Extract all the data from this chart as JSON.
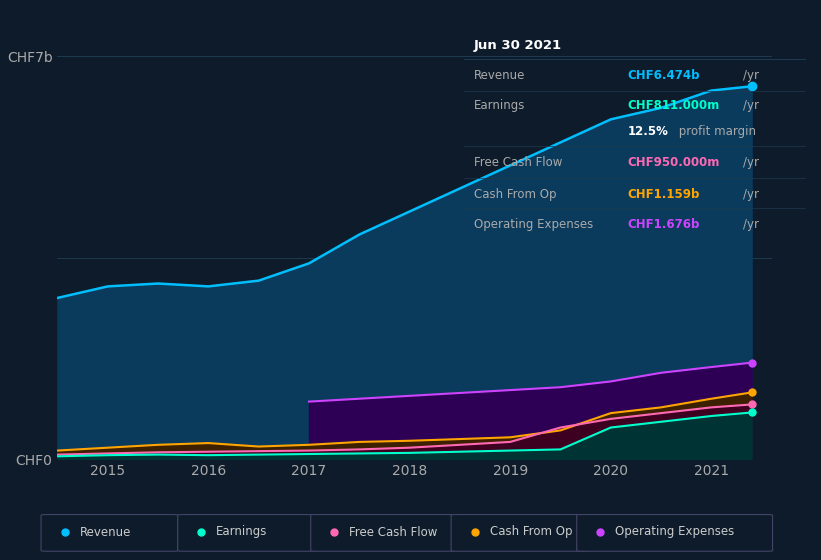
{
  "background_color": "#0d1b2a",
  "plot_bg_color": "#0d1b2a",
  "grid_color": "#1e3a50",
  "years": [
    2014.5,
    2015.0,
    2015.5,
    2016.0,
    2016.5,
    2017.0,
    2017.5,
    2018.0,
    2018.5,
    2019.0,
    2019.5,
    2020.0,
    2020.5,
    2021.0,
    2021.4
  ],
  "revenue": [
    2.8,
    3.0,
    3.05,
    3.0,
    3.1,
    3.4,
    3.9,
    4.3,
    4.7,
    5.1,
    5.5,
    5.9,
    6.1,
    6.4,
    6.474
  ],
  "earnings": [
    0.05,
    0.07,
    0.08,
    0.07,
    0.08,
    0.09,
    0.1,
    0.11,
    0.13,
    0.15,
    0.17,
    0.55,
    0.65,
    0.75,
    0.811
  ],
  "free_cash_flow": [
    0.08,
    0.1,
    0.12,
    0.13,
    0.14,
    0.15,
    0.17,
    0.2,
    0.25,
    0.3,
    0.55,
    0.7,
    0.8,
    0.9,
    0.95
  ],
  "cash_from_op": [
    0.15,
    0.2,
    0.25,
    0.28,
    0.22,
    0.25,
    0.3,
    0.32,
    0.35,
    0.38,
    0.5,
    0.8,
    0.9,
    1.05,
    1.159
  ],
  "op_expenses": [
    0.0,
    0.0,
    0.0,
    0.0,
    0.0,
    1.0,
    1.05,
    1.1,
    1.15,
    1.2,
    1.25,
    1.35,
    1.5,
    1.6,
    1.676
  ],
  "revenue_color": "#00bfff",
  "revenue_fill": "#0a3a5c",
  "earnings_color": "#00ffcc",
  "earnings_fill": "#003333",
  "free_cash_flow_color": "#ff69b4",
  "free_cash_flow_fill": "#3d0020",
  "cash_from_op_color": "#ffa500",
  "cash_from_op_fill": "#3d2000",
  "op_expenses_color": "#cc44ff",
  "op_expenses_fill": "#2d0055",
  "ylim": [
    0,
    7.0
  ],
  "xlim": [
    2014.5,
    2021.6
  ],
  "yticks": [
    0,
    3.5,
    7.0
  ],
  "ytick_labels": [
    "CHF0",
    "",
    "CHF7b"
  ],
  "xticks": [
    2015,
    2016,
    2017,
    2018,
    2019,
    2020,
    2021
  ],
  "info_box": {
    "date": "Jun 30 2021",
    "revenue_label": "Revenue",
    "revenue_value": "CHF6.474b",
    "revenue_value_color": "#00bfff",
    "earnings_label": "Earnings",
    "earnings_value": "CHF811.000m",
    "earnings_value_color": "#00ffcc",
    "profit_margin_bold": "12.5%",
    "profit_margin_rest": " profit margin",
    "fcf_label": "Free Cash Flow",
    "fcf_value": "CHF950.000m",
    "fcf_value_color": "#ff69b4",
    "cop_label": "Cash From Op",
    "cop_value": "CHF1.159b",
    "cop_value_color": "#ffa500",
    "opex_label": "Operating Expenses",
    "opex_value": "CHF1.676b",
    "opex_value_color": "#cc44ff",
    "bg_color": "#0a0f1a",
    "text_color": "#aaaaaa",
    "border_color": "#1e3a50"
  },
  "legend_items": [
    {
      "label": "Revenue",
      "color": "#00bfff"
    },
    {
      "label": "Earnings",
      "color": "#00ffcc"
    },
    {
      "label": "Free Cash Flow",
      "color": "#ff69b4"
    },
    {
      "label": "Cash From Op",
      "color": "#ffa500"
    },
    {
      "label": "Operating Expenses",
      "color": "#cc44ff"
    }
  ]
}
